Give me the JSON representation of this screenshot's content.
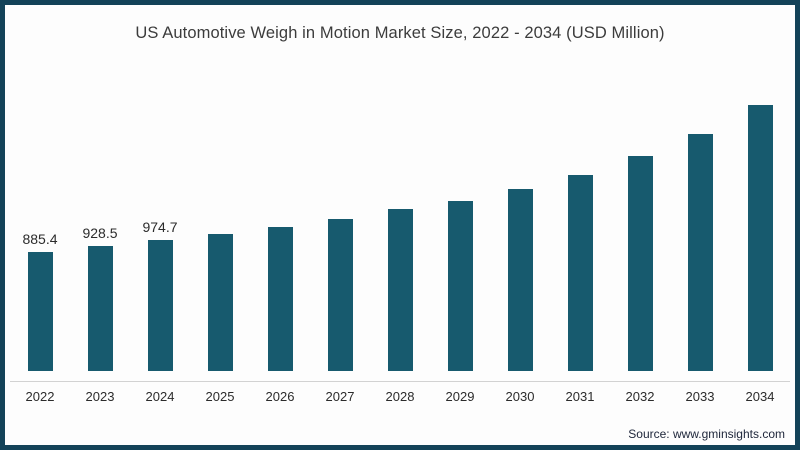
{
  "chart_data": {
    "type": "bar",
    "title": "US Automotive Weigh in Motion Market Size, 2022 - 2034 (USD Million)",
    "xlabel": "",
    "ylabel": "",
    "categories": [
      "2022",
      "2023",
      "2024",
      "2025",
      "2026",
      "2027",
      "2028",
      "2029",
      "2030",
      "2031",
      "2032",
      "2033",
      "2034"
    ],
    "values": [
      885.4,
      928.5,
      974.7,
      1020,
      1070,
      1130,
      1205,
      1265,
      1355,
      1460,
      1600,
      1765,
      1980
    ],
    "value_labels": [
      "885.4",
      "928.5",
      "974.7",
      "",
      "",
      "",
      "",
      "",
      "",
      "",
      "",
      "",
      ""
    ],
    "ylim": [
      0,
      2100
    ],
    "grid": false,
    "legend": false,
    "bar_color": "#175a6e"
  },
  "footer": {
    "source": "Source: www.gminsights.com"
  },
  "colors": {
    "frame_border": "#134258",
    "background": "#fdfdfd",
    "axis_line": "#d2d2d2",
    "title_text": "#3c3c3c",
    "label_text": "#2b2b2b"
  }
}
